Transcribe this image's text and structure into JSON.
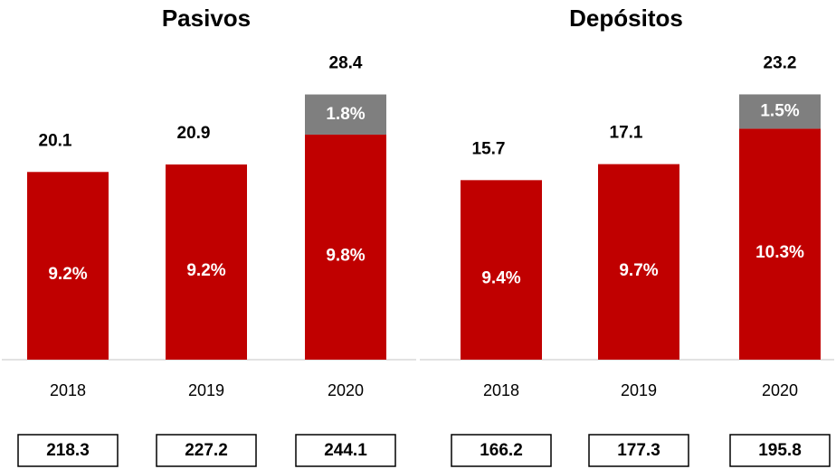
{
  "chart_data": [
    {
      "type": "stacked_bar",
      "title": "Pasivos",
      "categories": [
        "2018",
        "2019",
        "2020"
      ],
      "series": [
        {
          "color": "#c00000",
          "values": [
            20.1,
            20.9,
            24.1
          ],
          "percent_labels": [
            "9.2%",
            "9.2%",
            "9.8%"
          ]
        },
        {
          "color": "#7f7f7f",
          "values": [
            null,
            null,
            4.3
          ],
          "percent_labels": [
            null,
            null,
            "1.8%"
          ]
        }
      ],
      "totals": [
        20.1,
        20.9,
        28.4
      ],
      "boxes": [
        218.3,
        227.2,
        244.1
      ],
      "ylim": [
        0,
        30
      ]
    },
    {
      "type": "stacked_bar",
      "title": "Depósitos",
      "categories": [
        "2018",
        "2019",
        "2020"
      ],
      "series": [
        {
          "color": "#c00000",
          "values": [
            15.7,
            17.1,
            20.2
          ],
          "percent_labels": [
            "9.4%",
            "9.7%",
            "10.3%"
          ]
        },
        {
          "color": "#7f7f7f",
          "values": [
            null,
            null,
            3.0
          ],
          "percent_labels": [
            null,
            null,
            "1.5%"
          ]
        }
      ],
      "totals": [
        15.7,
        17.1,
        23.2
      ],
      "boxes": [
        166.2,
        177.3,
        195.8
      ],
      "ylim": [
        0,
        24.5
      ]
    }
  ]
}
